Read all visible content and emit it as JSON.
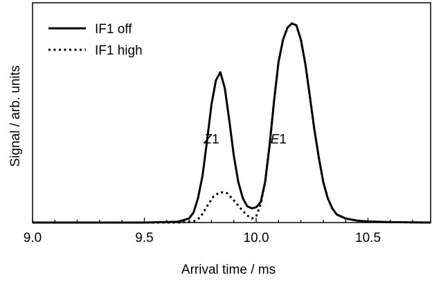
{
  "chart_data": {
    "type": "line",
    "xlabel": "Arrival time / ms",
    "ylabel": "Signal / arb. units",
    "xlim": [
      9.0,
      10.78
    ],
    "ylim": [
      0,
      1.0
    ],
    "xticks": [
      "9.0",
      "9.5",
      "10.0",
      "10.5"
    ],
    "grid": false,
    "legend_position": "top-left",
    "series": [
      {
        "name": "IF1 off",
        "style": "solid",
        "x": [
          9.0,
          9.5,
          9.65,
          9.7,
          9.72,
          9.74,
          9.76,
          9.78,
          9.8,
          9.82,
          9.84,
          9.86,
          9.88,
          9.9,
          9.92,
          9.94,
          9.96,
          9.98,
          10.0,
          10.02,
          10.04,
          10.06,
          10.08,
          10.1,
          10.12,
          10.14,
          10.16,
          10.18,
          10.2,
          10.22,
          10.24,
          10.26,
          10.28,
          10.3,
          10.32,
          10.34,
          10.36,
          10.4,
          10.45,
          10.5,
          10.6,
          10.78
        ],
        "y": [
          0.0,
          0.0,
          0.004,
          0.02,
          0.05,
          0.12,
          0.23,
          0.4,
          0.58,
          0.7,
          0.74,
          0.66,
          0.5,
          0.33,
          0.2,
          0.12,
          0.08,
          0.07,
          0.075,
          0.1,
          0.2,
          0.38,
          0.6,
          0.79,
          0.9,
          0.96,
          0.98,
          0.97,
          0.9,
          0.78,
          0.62,
          0.46,
          0.32,
          0.2,
          0.12,
          0.07,
          0.04,
          0.02,
          0.01,
          0.005,
          0.002,
          0.0
        ]
      },
      {
        "name": "IF1 high",
        "style": "dotted",
        "x": [
          9.0,
          9.65,
          9.72,
          9.75,
          9.78,
          9.81,
          9.84,
          9.87,
          9.9,
          9.93,
          9.96,
          9.98,
          10.0,
          10.02,
          10.04,
          10.06,
          10.08,
          10.1,
          10.12,
          10.14,
          10.16,
          10.18,
          10.2,
          10.22,
          10.24,
          10.26,
          10.28,
          10.3,
          10.32,
          10.34,
          10.36,
          10.4,
          10.45,
          10.5,
          10.6,
          10.78
        ],
        "y": [
          0.0,
          0.0,
          0.005,
          0.025,
          0.08,
          0.13,
          0.15,
          0.145,
          0.11,
          0.07,
          0.035,
          0.02,
          0.03,
          0.09,
          0.2,
          0.38,
          0.6,
          0.79,
          0.9,
          0.96,
          0.98,
          0.97,
          0.9,
          0.78,
          0.62,
          0.46,
          0.32,
          0.2,
          0.12,
          0.07,
          0.04,
          0.02,
          0.01,
          0.005,
          0.002,
          0.0
        ]
      }
    ],
    "annotations": [
      {
        "id": "z1",
        "italic": "Z",
        "text": "1",
        "x": 9.8,
        "y": 0.22
      },
      {
        "id": "e1",
        "italic": "E",
        "text": "1",
        "x": 10.1,
        "y": 0.22
      }
    ]
  }
}
